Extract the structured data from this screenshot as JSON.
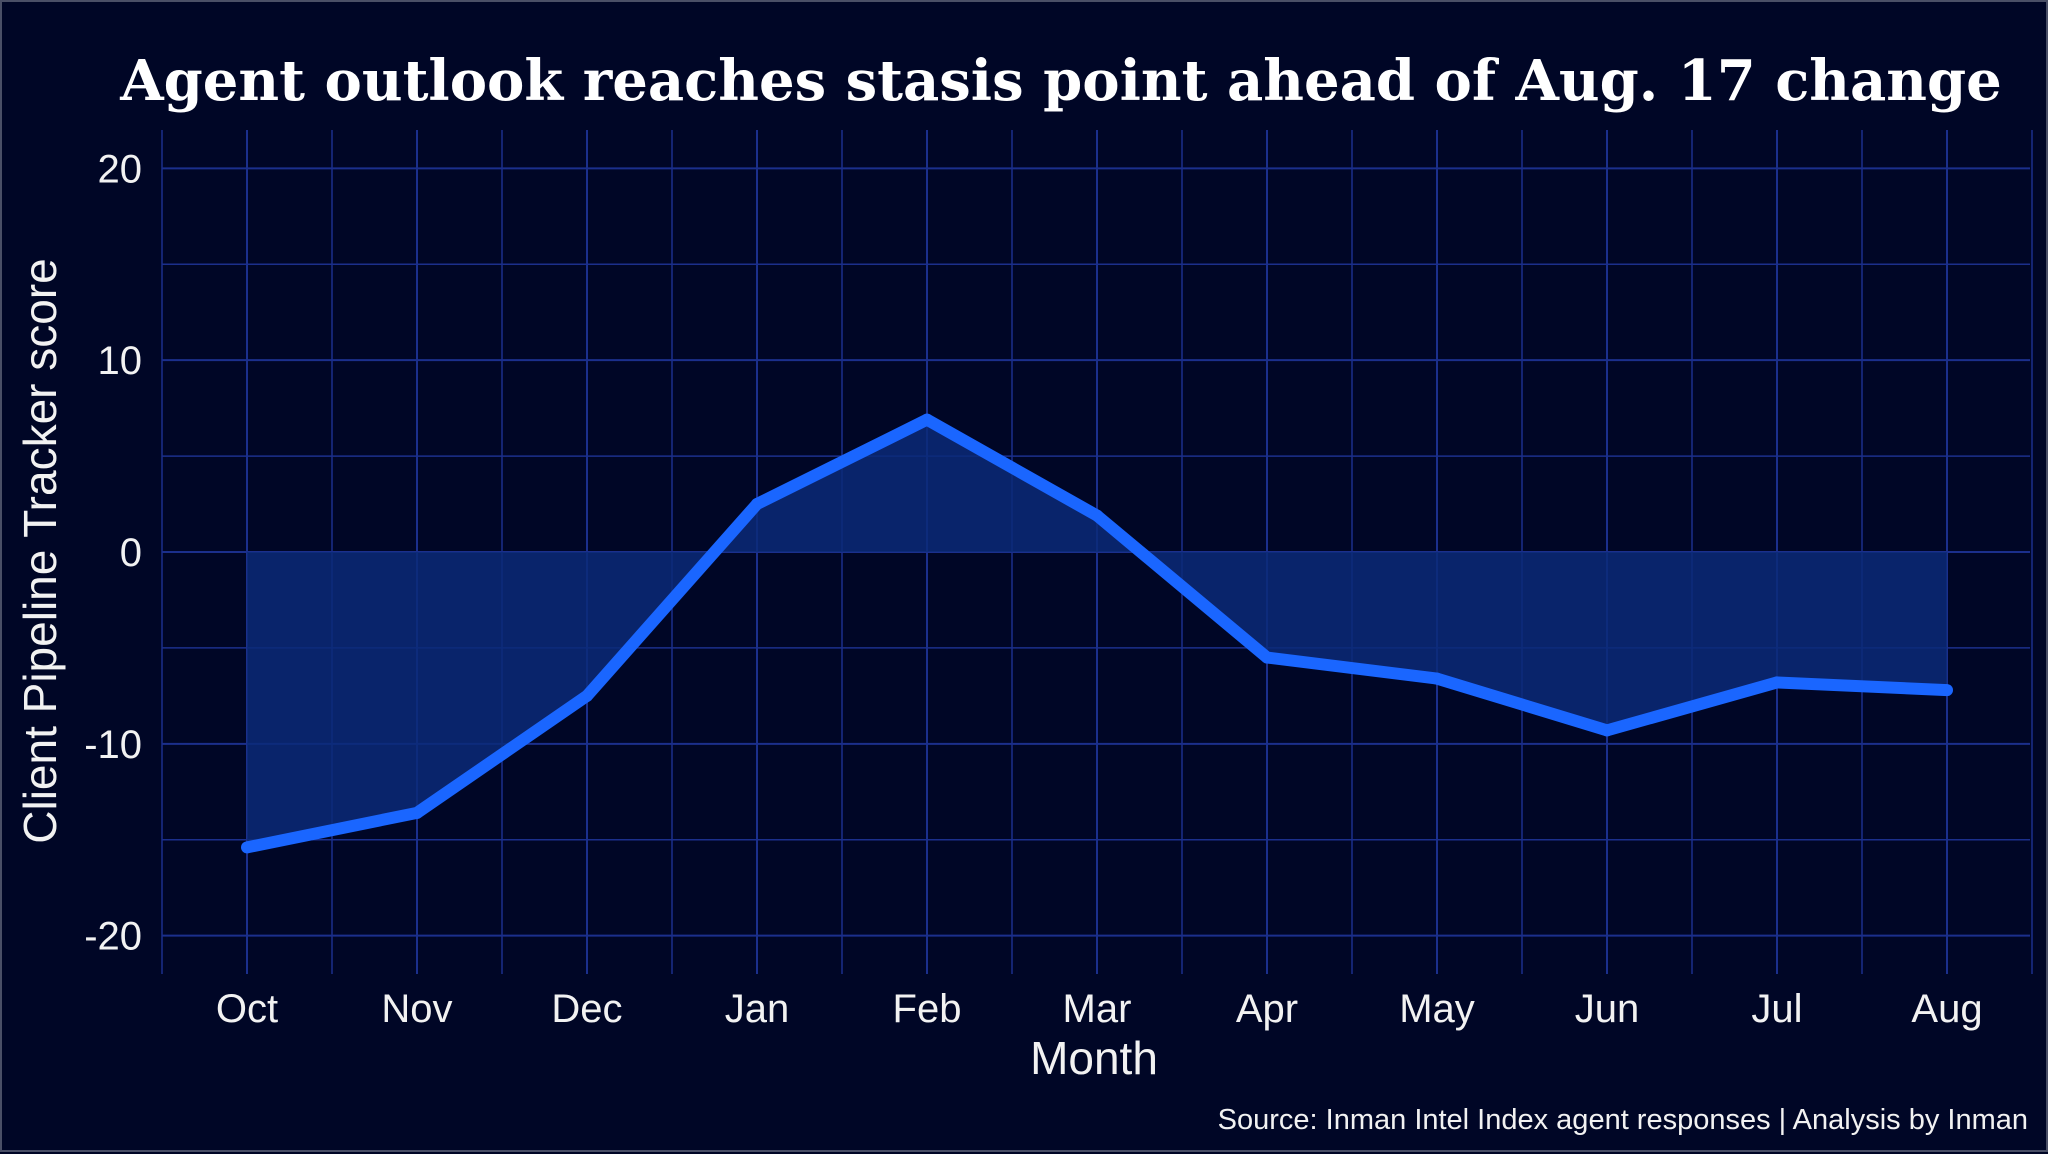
{
  "chart_data": {
    "type": "area",
    "title": "Agent outlook reaches stasis point ahead of Aug. 17 change",
    "xlabel": "Month",
    "ylabel": "Client Pipeline Tracker score",
    "caption": "Source: Inman Intel Index agent responses | Analysis by Inman",
    "categories": [
      "Oct",
      "Nov",
      "Dec",
      "Jan",
      "Feb",
      "Mar",
      "Apr",
      "May",
      "Jun",
      "Jul",
      "Aug"
    ],
    "series": [
      {
        "name": "Client Pipeline Tracker score",
        "values": [
          -15.4,
          -13.6,
          -7.5,
          2.5,
          6.9,
          1.9,
          -5.5,
          -6.6,
          -9.3,
          -6.8,
          -7.2
        ]
      }
    ],
    "ylim": [
      -22,
      22
    ],
    "yticks": [
      -20,
      -10,
      0,
      10,
      20
    ],
    "ytick_labels": [
      "-20",
      "-10",
      "0",
      "10",
      "20"
    ],
    "grid": true,
    "colors": {
      "background": "#000626",
      "line": "#1a66ff",
      "fill": "#0a2a78",
      "grid": "#1b2f8c"
    }
  }
}
